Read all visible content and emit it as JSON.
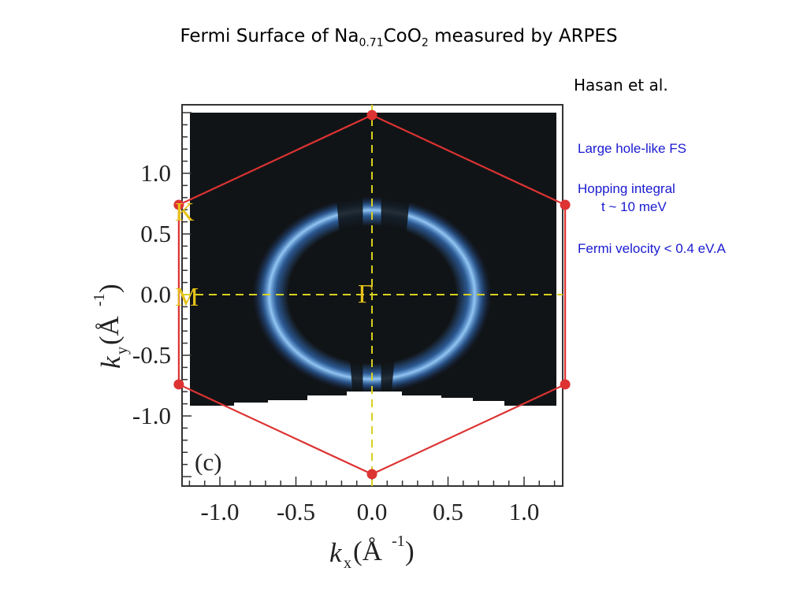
{
  "slide": {
    "title": {
      "prefix": "Fermi Surface of Na",
      "na_subscript": "0.71",
      "mid": "CoO",
      "o_subscript": "2",
      "suffix": " measured by ARPES"
    },
    "attribution": "Hasan et al.",
    "notes": {
      "large_hole": "Large hole-like FS",
      "hopping_line1": "Hopping integral",
      "hopping_line2": "t ~ 10 meV",
      "fermi_velocity": "Fermi velocity < 0.4 eV.A"
    }
  },
  "figure": {
    "panel_label": "(c)",
    "points": {
      "K": "K",
      "M": "M",
      "Gamma": "Γ"
    },
    "x_axis": {
      "label_main": "k",
      "label_sub": "x",
      "label_unit": "(Å",
      "label_exp": "-1",
      "label_close": ")"
    },
    "y_axis": {
      "label_main": "k",
      "label_sub": "y",
      "label_unit": "(Å",
      "label_exp": "-1",
      "label_close": ")"
    },
    "colors": {
      "brillouin_zone": "#dd3333",
      "high_symmetry_lines": "#d8d020",
      "labels": "#e6c21a",
      "intensity": "#3f8cf0",
      "background": "#111416"
    }
  },
  "chart_data": {
    "type": "heatmap",
    "title": "",
    "xlabel": "kx (Å-1)",
    "ylabel": "ky (Å-1)",
    "xlim": [
      -1.45,
      1.55
    ],
    "ylim": [
      -1.55,
      1.55
    ],
    "x_ticks": [
      -1.0,
      -0.5,
      0.0,
      0.5,
      1.0
    ],
    "x_tick_labels": [
      "-1.0",
      "-0.5",
      "0.0",
      "0.5",
      "1.0"
    ],
    "y_ticks": [
      1.0,
      0.5,
      0.0,
      -0.5,
      -1.0
    ],
    "y_tick_labels": [
      "1.0",
      "0.5",
      "0.0",
      "-0.5",
      "-1.0"
    ],
    "grid": false,
    "brillouin_zone_vertices": [
      {
        "x": 0.0,
        "y": 1.48
      },
      {
        "x": 1.27,
        "y": 0.74
      },
      {
        "x": 1.27,
        "y": -0.74
      },
      {
        "x": 0.0,
        "y": -1.48
      },
      {
        "x": -1.27,
        "y": -0.74
      },
      {
        "x": -1.27,
        "y": 0.74
      }
    ],
    "high_symmetry_labels": [
      {
        "label": "K",
        "x": -1.27,
        "y": 0.74
      },
      {
        "label": "M",
        "x": -1.27,
        "y": 0.0
      },
      {
        "label": "Γ",
        "x": 0.0,
        "y": 0.0
      }
    ],
    "fermi_surface": {
      "center_x": 0.0,
      "center_y": 0.0,
      "radius_kx": 0.66,
      "radius_ky": 0.68
    }
  }
}
